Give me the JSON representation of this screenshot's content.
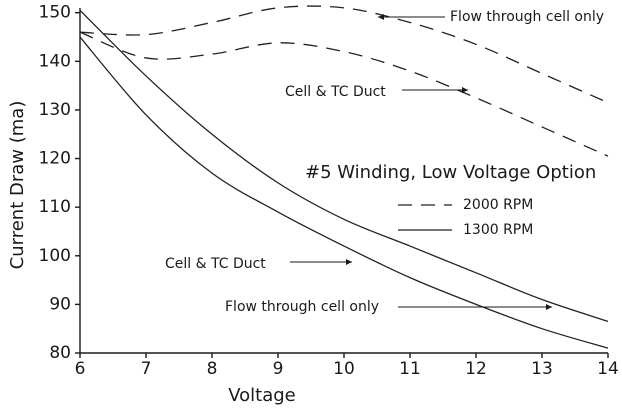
{
  "chart_data": {
    "type": "line",
    "title": "#5 Winding, Low Voltage Option",
    "x_label": "Voltage",
    "y_label": "Current Draw (ma)",
    "x": [
      6,
      7,
      8,
      9,
      10,
      11,
      12,
      13,
      14
    ],
    "xlim": [
      6,
      14
    ],
    "xticks": [
      6,
      7,
      8,
      9,
      10,
      11,
      12,
      13,
      14
    ],
    "ylim": [
      80,
      152
    ],
    "yticks": [
      80,
      90,
      100,
      110,
      120,
      130,
      140,
      150
    ],
    "grid": false,
    "legend": [
      {
        "label": "2000 RPM",
        "dash": "dashed"
      },
      {
        "label": "1300 RPM",
        "dash": "solid"
      }
    ],
    "series": [
      {
        "name": "Flow through cell only",
        "dash": "dashed",
        "color": "#222222",
        "values": [
          146,
          145.5,
          148,
          151,
          151,
          148,
          143.5,
          137.5,
          131.5
        ]
      },
      {
        "name": "Cell & TC Duct",
        "dash": "dashed",
        "color": "#222222",
        "values": [
          146,
          140.7,
          141.5,
          143.8,
          142,
          138,
          132.5,
          126.5,
          120.5
        ]
      },
      {
        "name": "Flow through cell only",
        "dash": "solid",
        "color": "#222222",
        "values": [
          150.5,
          137,
          125,
          115,
          107.5,
          102,
          96.5,
          91,
          86.5
        ]
      },
      {
        "name": "Cell & TC Duct",
        "dash": "solid",
        "color": "#222222",
        "values": [
          145,
          129,
          117,
          109,
          102,
          95.5,
          90,
          85,
          81
        ]
      }
    ]
  }
}
